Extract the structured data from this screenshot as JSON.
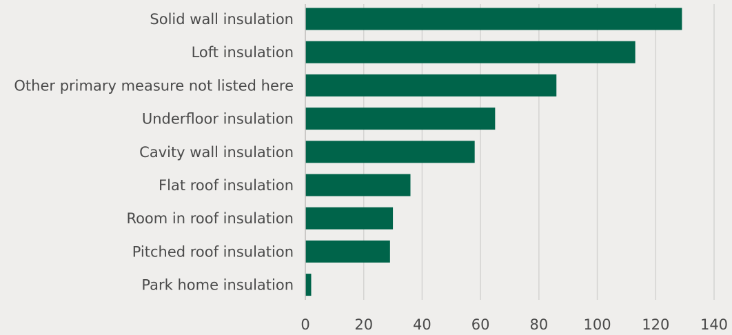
{
  "chart_data": {
    "type": "bar",
    "orientation": "horizontal",
    "title": "",
    "xlabel": "",
    "ylabel": "",
    "categories": [
      "Solid wall insulation",
      "Loft insulation",
      "Other primary measure not listed here",
      "Underfloor insulation",
      "Cavity wall insulation",
      "Flat roof insulation",
      "Room in roof insulation",
      "Pitched roof insulation",
      "Park home insulation"
    ],
    "values": [
      129,
      113,
      86,
      65,
      58,
      36,
      30,
      29,
      2
    ],
    "xlim": [
      0,
      140
    ],
    "xticks": [
      "0",
      "20",
      "40",
      "60",
      "80",
      "100",
      "120",
      "140"
    ],
    "grid": "vertical",
    "bar_color": "#00644a",
    "grid_color": "#d4d3d1",
    "axis_color": "#bdbcba",
    "background": "#efeeec"
  }
}
